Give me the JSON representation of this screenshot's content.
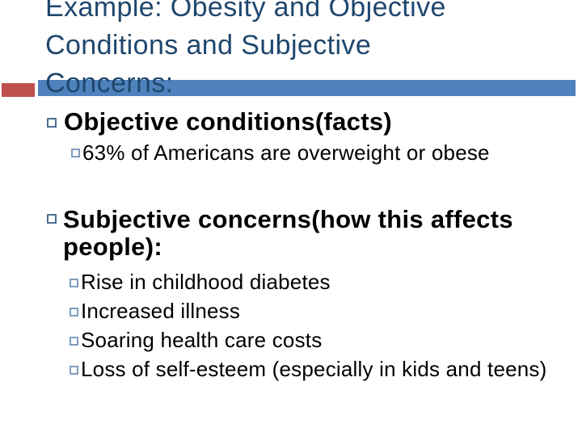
{
  "slide": {
    "title_lines": [
      "Example: Obesity and Objective",
      "Conditions and Subjective",
      "Concerns:"
    ],
    "bullets": [
      {
        "level": 1,
        "text": "Objective conditions(facts)"
      },
      {
        "level": 2,
        "text": "63% of Americans are overweight or obese"
      },
      {
        "level": 1,
        "text": "Subjective concerns(how this affects people):"
      },
      {
        "level": 2,
        "text": "Rise in childhood diabetes"
      },
      {
        "level": 2,
        "text": "Increased illness"
      },
      {
        "level": 2,
        "text": "Soaring health care costs"
      },
      {
        "level": 2,
        "text": "Loss of self-esteem (especially in kids and teens)"
      }
    ],
    "colors": {
      "title_text": "#20476e",
      "bar_blue": "#4f81bd",
      "accent_red": "#c0504d",
      "bullet_level1_border": "#4e6d94",
      "bullet_level2_border": "#7e9ebd",
      "body_text": "#000000",
      "background": "#ffffff"
    }
  }
}
